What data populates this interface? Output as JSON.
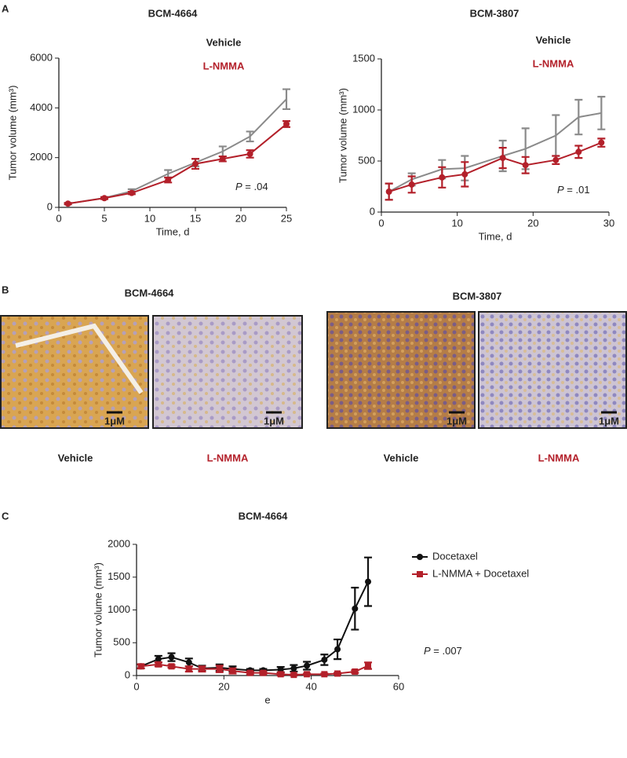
{
  "panels": [
    "A",
    "B",
    "C"
  ],
  "chart_data": [
    {
      "type": "line",
      "title": "BCM-4664",
      "xlabel": "Time, d",
      "ylabel": "Tumor volume (mm³)",
      "annotation": {
        "italic": "P",
        "text": " = .04"
      },
      "x": [
        1,
        5,
        8,
        12,
        15,
        18,
        21,
        25
      ],
      "xlim": [
        0,
        25
      ],
      "xticks": [
        0,
        5,
        10,
        15,
        20,
        25
      ],
      "ylim": [
        0,
        6000
      ],
      "yticks": [
        0,
        2000,
        4000,
        6000
      ],
      "series": [
        {
          "name": "Vehicle",
          "color": "#8a8a8a",
          "values": [
            150,
            380,
            650,
            1350,
            1800,
            2250,
            2850,
            4350
          ],
          "errors": [
            30,
            40,
            80,
            150,
            150,
            200,
            200,
            400
          ]
        },
        {
          "name": "L-NMMA",
          "color": "#b3202a",
          "marker": "circle",
          "values": [
            150,
            370,
            580,
            1100,
            1750,
            1950,
            2150,
            3350
          ],
          "errors": [
            30,
            40,
            50,
            100,
            200,
            100,
            150,
            120
          ]
        }
      ]
    },
    {
      "type": "line",
      "title": "BCM-3807",
      "xlabel": "Time, d",
      "ylabel": "Tumor volume (mm³)",
      "annotation": {
        "italic": "P",
        "text": " = .01"
      },
      "x": [
        1,
        4,
        8,
        11,
        16,
        19,
        23,
        26,
        29
      ],
      "xlim": [
        0,
        30
      ],
      "xticks": [
        0,
        10,
        20,
        30
      ],
      "ylim": [
        0,
        1500
      ],
      "yticks": [
        0,
        500,
        1000,
        1500
      ],
      "series": [
        {
          "name": "Vehicle",
          "color": "#8a8a8a",
          "values": [
            200,
            320,
            420,
            430,
            550,
            620,
            750,
            930,
            970
          ],
          "errors": [
            80,
            60,
            90,
            120,
            150,
            200,
            200,
            170,
            160
          ]
        },
        {
          "name": "L-NMMA",
          "color": "#b3202a",
          "marker": "circle",
          "values": [
            200,
            270,
            340,
            370,
            530,
            460,
            510,
            590,
            680
          ],
          "errors": [
            80,
            80,
            100,
            120,
            100,
            80,
            40,
            60,
            40
          ]
        }
      ]
    },
    {
      "type": "line",
      "title": "BCM-4664",
      "xlabel": "e",
      "ylabel": "Tumor volume (mm³)",
      "annotation": {
        "italic": "P",
        "text": " = .007"
      },
      "legend": "top-right",
      "x": [
        1,
        5,
        8,
        12,
        15,
        19,
        22,
        26,
        29,
        33,
        36,
        39,
        43,
        46,
        50,
        53
      ],
      "xlim": [
        0,
        60
      ],
      "xticks": [
        0,
        20,
        40,
        60
      ],
      "ylim": [
        0,
        2000
      ],
      "yticks": [
        0,
        500,
        1000,
        1500,
        2000
      ],
      "series": [
        {
          "name": "Docetaxel",
          "color": "#111111",
          "marker": "circle",
          "values": [
            140,
            250,
            280,
            200,
            110,
            120,
            100,
            80,
            80,
            90,
            110,
            150,
            240,
            400,
            1020,
            1430
          ],
          "errors": [
            30,
            50,
            60,
            60,
            40,
            50,
            40,
            20,
            20,
            40,
            50,
            60,
            80,
            150,
            320,
            370
          ]
        },
        {
          "name": "L-NMMA + Docetaxel",
          "color": "#b3202a",
          "marker": "square",
          "values": [
            140,
            170,
            140,
            100,
            100,
            100,
            70,
            40,
            40,
            20,
            10,
            20,
            20,
            30,
            60,
            150
          ],
          "errors": [
            30,
            30,
            20,
            40,
            40,
            50,
            40,
            20,
            20,
            20,
            10,
            10,
            10,
            10,
            20,
            50
          ]
        }
      ]
    }
  ],
  "histology": {
    "groups": [
      {
        "title": "BCM-4664",
        "images": [
          {
            "caption": "Vehicle",
            "scale": "1μM"
          },
          {
            "caption": "L-NMMA",
            "scale": "1μM"
          }
        ]
      },
      {
        "title": "BCM-3807",
        "images": [
          {
            "caption": "Vehicle",
            "scale": "1μM"
          },
          {
            "caption": "L-NMMA",
            "scale": "1μM"
          }
        ]
      }
    ]
  }
}
